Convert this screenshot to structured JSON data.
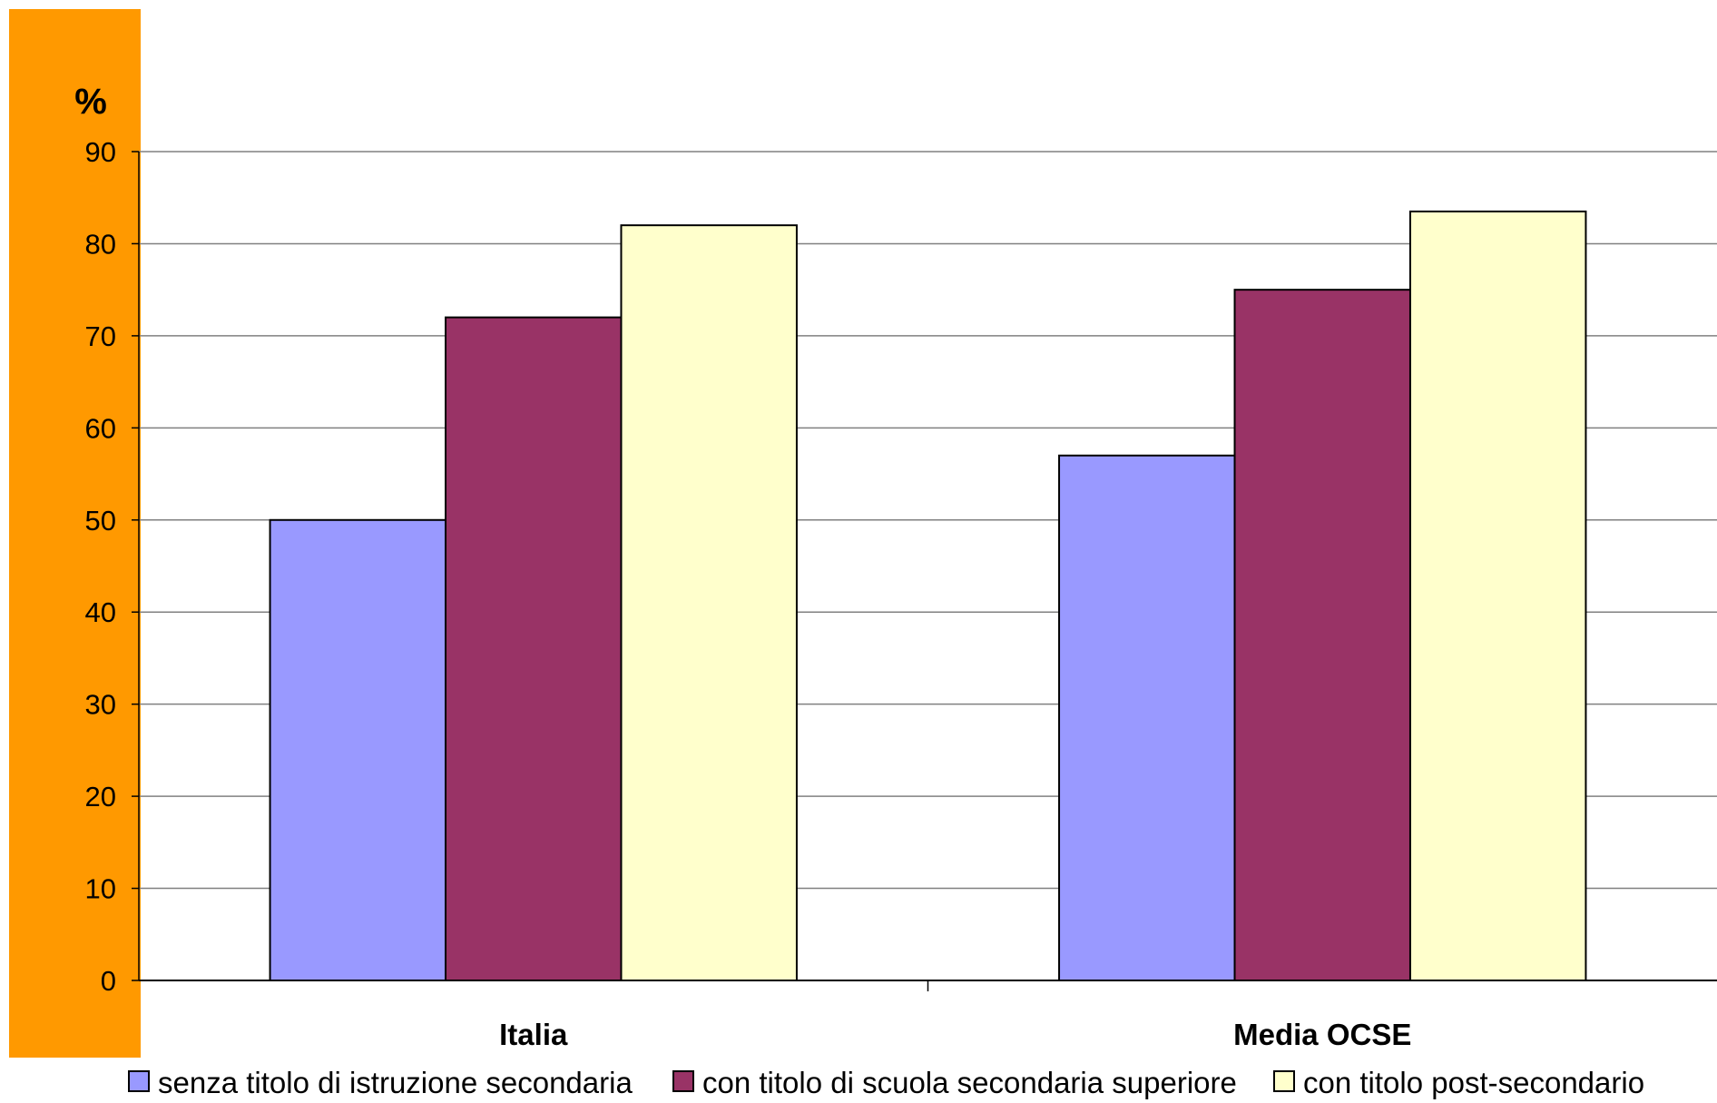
{
  "chart_data": {
    "type": "bar",
    "unit_label": "%",
    "categories": [
      "Italia",
      "Media OCSE"
    ],
    "series": [
      {
        "name": "senza titolo di istruzione secondaria",
        "values": [
          50,
          57
        ],
        "color": "#9999ff"
      },
      {
        "name": "con titolo di scuola secondaria superiore",
        "values": [
          72,
          75
        ],
        "color": "#993366"
      },
      {
        "name": "con titolo post-secondario",
        "values": [
          82,
          83.5
        ],
        "color": "#ffffcc"
      }
    ],
    "ylim": [
      0,
      90
    ],
    "yticks": [
      "0",
      "10",
      "20",
      "30",
      "40",
      "50",
      "60",
      "70",
      "80",
      "90"
    ],
    "grid": true,
    "legend_position": "bottom",
    "accent_color": "#ff9900"
  }
}
